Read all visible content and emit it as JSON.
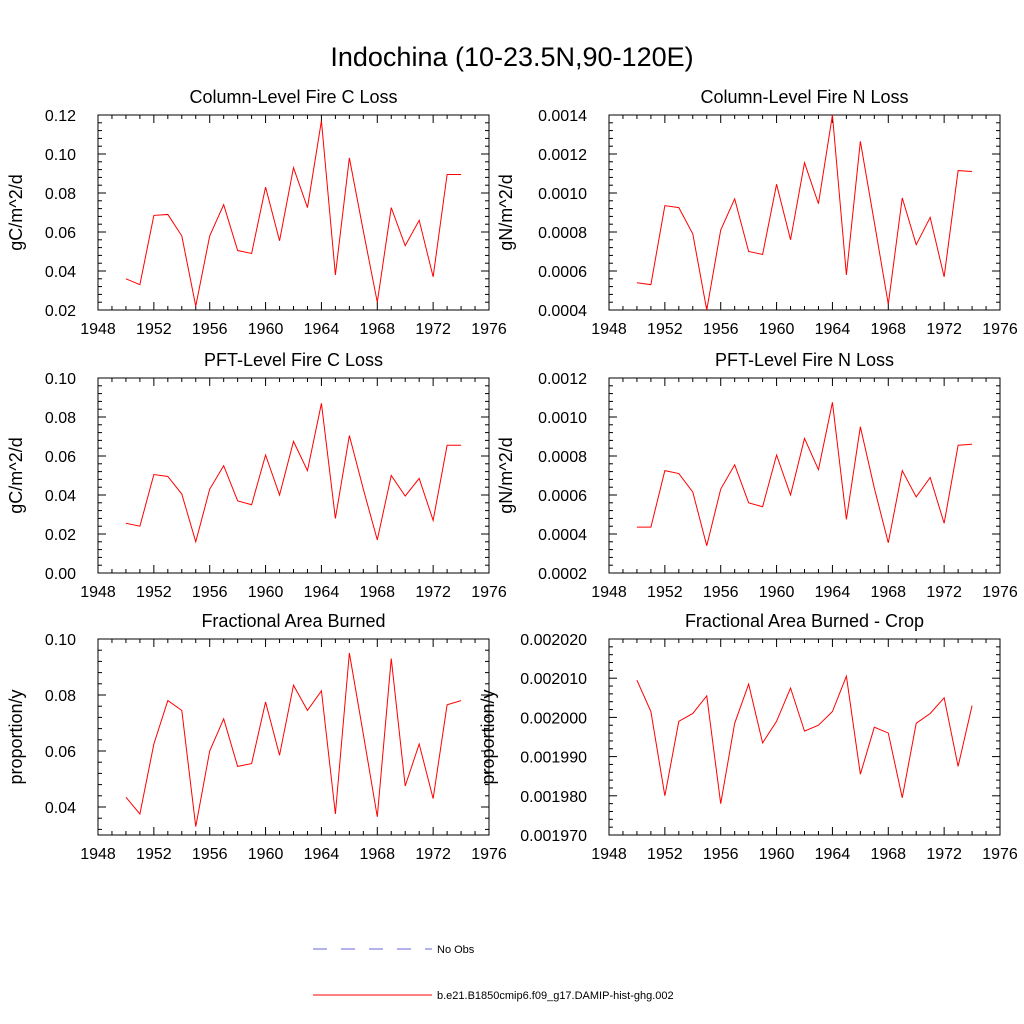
{
  "figure": {
    "title": "Indochina (10-23.5N,90-120E)"
  },
  "legend": {
    "items": [
      {
        "label": "No Obs",
        "color": "#6a6ad8",
        "style": "dashed"
      },
      {
        "label": "b.e21.B1850cmip6.f09_g17.DAMIP-hist-ghg.002",
        "color": "#ff0000",
        "style": "solid"
      }
    ]
  },
  "chart_data": [
    {
      "type": "line",
      "title": "Column-Level Fire C Loss",
      "xlabel": "",
      "ylabel": "gC/m^2/d",
      "xlim": [
        1948,
        1976
      ],
      "ylim": [
        0.02,
        0.12
      ],
      "xticks": [
        "1948",
        "1952",
        "1956",
        "1960",
        "1964",
        "1968",
        "1972",
        "1976"
      ],
      "yticks": [
        "0.02",
        "0.04",
        "0.06",
        "0.08",
        "0.10",
        "0.12"
      ],
      "series": [
        {
          "color": "#ff0000",
          "x": [
            1950,
            1951,
            1952,
            1953,
            1954,
            1955,
            1956,
            1957,
            1958,
            1959,
            1960,
            1961,
            1962,
            1963,
            1964,
            1965,
            1966,
            1967,
            1968,
            1969,
            1970,
            1971,
            1972,
            1973,
            1974
          ],
          "values": [
            0.036,
            0.033,
            0.0685,
            0.069,
            0.058,
            0.022,
            0.058,
            0.074,
            0.0505,
            0.049,
            0.083,
            0.0555,
            0.093,
            0.0725,
            0.117,
            0.038,
            0.098,
            0.0605,
            0.024,
            0.0725,
            0.053,
            0.066,
            0.037,
            0.0895,
            0.0895
          ]
        }
      ]
    },
    {
      "type": "line",
      "title": "Column-Level Fire N Loss",
      "xlabel": "",
      "ylabel": "gN/m^2/d",
      "xlim": [
        1948,
        1976
      ],
      "ylim": [
        0.0004,
        0.0014
      ],
      "xticks": [
        "1948",
        "1952",
        "1956",
        "1960",
        "1964",
        "1968",
        "1972",
        "1976"
      ],
      "yticks": [
        "0.0004",
        "0.0006",
        "0.0008",
        "0.0010",
        "0.0012",
        "0.0014"
      ],
      "series": [
        {
          "color": "#ff0000",
          "x": [
            1950,
            1951,
            1952,
            1953,
            1954,
            1955,
            1956,
            1957,
            1958,
            1959,
            1960,
            1961,
            1962,
            1963,
            1964,
            1965,
            1966,
            1967,
            1968,
            1969,
            1970,
            1971,
            1972,
            1973,
            1974
          ],
          "values": [
            0.00054,
            0.00053,
            0.000935,
            0.000925,
            0.00079,
            0.0004,
            0.00081,
            0.00097,
            0.0007,
            0.000685,
            0.001045,
            0.00076,
            0.001155,
            0.000945,
            0.0014,
            0.00058,
            0.001265,
            0.00085,
            0.00043,
            0.000975,
            0.000735,
            0.000875,
            0.00057,
            0.001115,
            0.00111
          ]
        }
      ]
    },
    {
      "type": "line",
      "title": "PFT-Level Fire C Loss",
      "xlabel": "",
      "ylabel": "gC/m^2/d",
      "xlim": [
        1948,
        1976
      ],
      "ylim": [
        0.0,
        0.1
      ],
      "xticks": [
        "1948",
        "1952",
        "1956",
        "1960",
        "1964",
        "1968",
        "1972",
        "1976"
      ],
      "yticks": [
        "0.00",
        "0.02",
        "0.04",
        "0.06",
        "0.08",
        "0.10"
      ],
      "series": [
        {
          "color": "#ff0000",
          "x": [
            1950,
            1951,
            1952,
            1953,
            1954,
            1955,
            1956,
            1957,
            1958,
            1959,
            1960,
            1961,
            1962,
            1963,
            1964,
            1965,
            1966,
            1967,
            1968,
            1969,
            1970,
            1971,
            1972,
            1973,
            1974
          ],
          "values": [
            0.0255,
            0.024,
            0.0505,
            0.0495,
            0.0405,
            0.016,
            0.043,
            0.055,
            0.037,
            0.035,
            0.0605,
            0.04,
            0.0675,
            0.0525,
            0.087,
            0.028,
            0.0705,
            0.043,
            0.017,
            0.05,
            0.0395,
            0.0485,
            0.027,
            0.0655,
            0.0655
          ]
        }
      ]
    },
    {
      "type": "line",
      "title": "PFT-Level Fire N Loss",
      "xlabel": "",
      "ylabel": "gN/m^2/d",
      "xlim": [
        1948,
        1976
      ],
      "ylim": [
        0.0002,
        0.0012
      ],
      "xticks": [
        "1948",
        "1952",
        "1956",
        "1960",
        "1964",
        "1968",
        "1972",
        "1976"
      ],
      "yticks": [
        "0.0002",
        "0.0004",
        "0.0006",
        "0.0008",
        "0.0010",
        "0.0012"
      ],
      "series": [
        {
          "color": "#ff0000",
          "x": [
            1950,
            1951,
            1952,
            1953,
            1954,
            1955,
            1956,
            1957,
            1958,
            1959,
            1960,
            1961,
            1962,
            1963,
            1964,
            1965,
            1966,
            1967,
            1968,
            1969,
            1970,
            1971,
            1972,
            1973,
            1974
          ],
          "values": [
            0.000435,
            0.000435,
            0.000725,
            0.00071,
            0.000615,
            0.00034,
            0.00063,
            0.000755,
            0.00056,
            0.00054,
            0.000805,
            0.0006,
            0.00089,
            0.00073,
            0.001075,
            0.000475,
            0.00095,
            0.000635,
            0.000355,
            0.000725,
            0.00059,
            0.00069,
            0.000455,
            0.000855,
            0.00086
          ]
        }
      ]
    },
    {
      "type": "line",
      "title": "Fractional Area Burned",
      "xlabel": "",
      "ylabel": "proportion/y",
      "xlim": [
        1948,
        1976
      ],
      "ylim": [
        0.03,
        0.1
      ],
      "xticks": [
        "1948",
        "1952",
        "1956",
        "1960",
        "1964",
        "1968",
        "1972",
        "1976"
      ],
      "yticks": [
        "0.04",
        "0.06",
        "0.08",
        "0.10"
      ],
      "series": [
        {
          "color": "#ff0000",
          "x": [
            1950,
            1951,
            1952,
            1953,
            1954,
            1955,
            1956,
            1957,
            1958,
            1959,
            1960,
            1961,
            1962,
            1963,
            1964,
            1965,
            1966,
            1967,
            1968,
            1969,
            1970,
            1971,
            1972,
            1973,
            1974
          ],
          "values": [
            0.0435,
            0.0375,
            0.0625,
            0.078,
            0.0745,
            0.033,
            0.06,
            0.0715,
            0.0545,
            0.0555,
            0.0775,
            0.0585,
            0.0835,
            0.0745,
            0.0815,
            0.0375,
            0.095,
            0.066,
            0.0365,
            0.093,
            0.0475,
            0.0625,
            0.043,
            0.0765,
            0.078
          ]
        }
      ]
    },
    {
      "type": "line",
      "title": "Fractional Area Burned - Crop",
      "xlabel": "",
      "ylabel": "proportion/y",
      "xlim": [
        1948,
        1976
      ],
      "ylim": [
        0.00197,
        0.00202
      ],
      "xticks": [
        "1948",
        "1952",
        "1956",
        "1960",
        "1964",
        "1968",
        "1972",
        "1976"
      ],
      "yticks": [
        "0.001970",
        "0.001980",
        "0.001990",
        "0.002000",
        "0.002010",
        "0.002020"
      ],
      "series": [
        {
          "color": "#ff0000",
          "x": [
            1950,
            1951,
            1952,
            1953,
            1954,
            1955,
            1956,
            1957,
            1958,
            1959,
            1960,
            1961,
            1962,
            1963,
            1964,
            1965,
            1966,
            1967,
            1968,
            1969,
            1970,
            1971,
            1972,
            1973,
            1974
          ],
          "values": [
            0.0020095,
            0.0020015,
            0.00198,
            0.001999,
            0.002001,
            0.0020055,
            0.001978,
            0.0019985,
            0.0020085,
            0.0019935,
            0.001999,
            0.0020075,
            0.0019965,
            0.001998,
            0.0020015,
            0.0020105,
            0.0019855,
            0.0019975,
            0.001996,
            0.0019795,
            0.0019985,
            0.002001,
            0.002005,
            0.0019875,
            0.002003
          ]
        }
      ]
    }
  ]
}
